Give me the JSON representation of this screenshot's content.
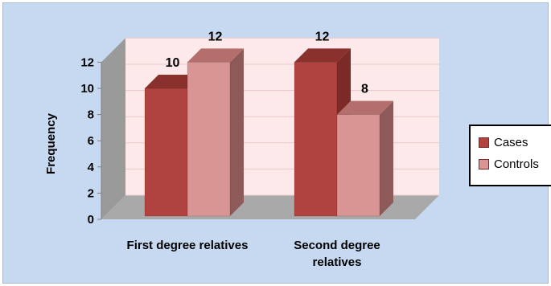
{
  "chart_data": {
    "type": "bar",
    "categories": [
      "First degree relatives",
      "Second degree relatives"
    ],
    "category_lines": [
      [
        "First degree relatives"
      ],
      [
        "Second degree",
        "relatives"
      ]
    ],
    "series": [
      {
        "name": "Cases",
        "values": [
          10,
          12
        ],
        "color": "#b0433f",
        "side_color": "#7b2a27",
        "top_color": "#8a302d"
      },
      {
        "name": "Controls",
        "values": [
          12,
          8
        ],
        "color": "#d89593",
        "side_color": "#8e5a59",
        "top_color": "#b46f6d"
      }
    ],
    "title": "",
    "xlabel": "",
    "ylabel": "Frequency",
    "ylim": [
      0,
      12
    ],
    "yticks": [
      0,
      2,
      4,
      6,
      8,
      10,
      12
    ],
    "legend_position": "right",
    "style": "3d-clustered-column",
    "colors": {
      "plot_background": "#c6d9f1",
      "back_wall": "#fde9ea",
      "side_wall": "#9a9a9a",
      "floor": "#a9a9a9"
    }
  }
}
